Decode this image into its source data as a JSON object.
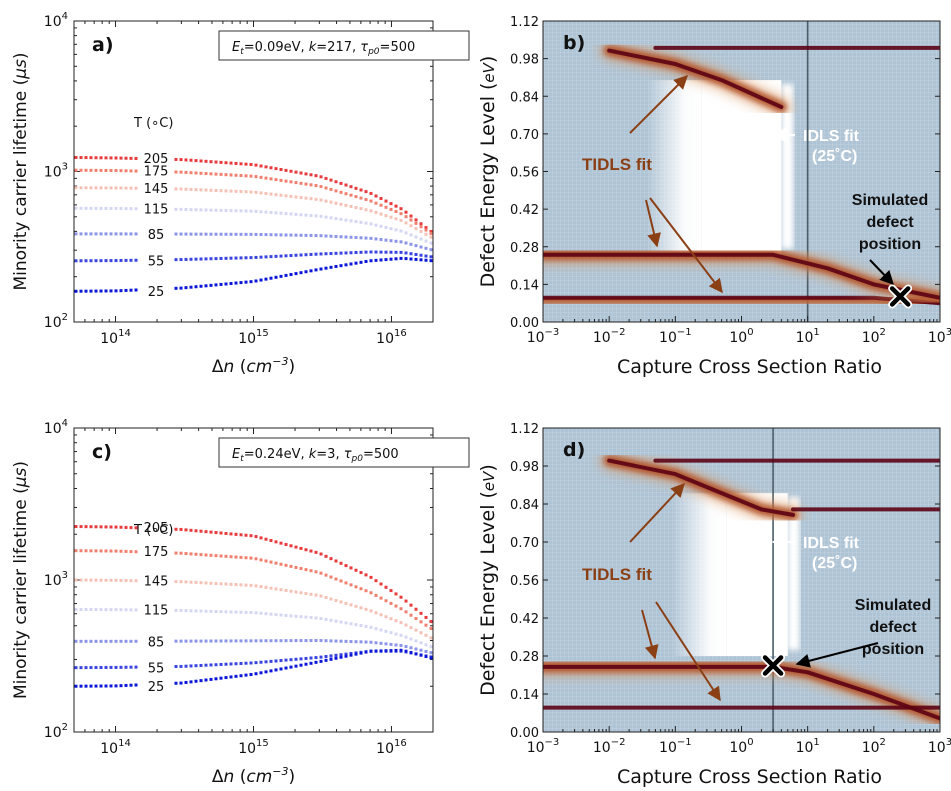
{
  "chart_data": [
    {
      "panel": "a)",
      "type": "scatter",
      "info": [
        "E",
        "t",
        "=0.09eV, ",
        "k",
        "=217, ",
        "τ",
        "p0",
        "=500"
      ],
      "xlabel_parts": [
        "Δ",
        "n",
        " (",
        "cm",
        "−3",
        ")"
      ],
      "ylabel_parts": [
        "Minority carrier lifetime (",
        "μs",
        ")"
      ],
      "xscale": "log",
      "yscale": "log",
      "xlim": [
        50000000000000.0,
        2e+16
      ],
      "ylim": [
        100,
        10000
      ],
      "xticks": [
        {
          "v": 100000000000000.0,
          "b": "10",
          "e": "14"
        },
        {
          "v": 1000000000000000.0,
          "b": "10",
          "e": "15"
        },
        {
          "v": 1e+16,
          "b": "10",
          "e": "16"
        }
      ],
      "yticks": [
        {
          "v": 100,
          "b": "10",
          "e": "2"
        },
        {
          "v": 1000,
          "b": "10",
          "e": "3"
        },
        {
          "v": 10000,
          "b": "10",
          "e": "4"
        }
      ],
      "legend_title": "T (∘C)",
      "series": [
        {
          "name": "205",
          "color": "#e8393b",
          "x": [
            50000000000000.0,
            100000000000000.0,
            300000000000000.0,
            1000000000000000.0,
            3000000000000000.0,
            7000000000000000.0,
            1.2e+16,
            2e+16
          ],
          "y": [
            1240,
            1230,
            1200,
            1110,
            930,
            720,
            560,
            390
          ]
        },
        {
          "name": "175",
          "color": "#f07f6e",
          "x": [
            50000000000000.0,
            100000000000000.0,
            300000000000000.0,
            1000000000000000.0,
            3000000000000000.0,
            7000000000000000.0,
            1.2e+16,
            2e+16
          ],
          "y": [
            1020,
            1015,
            990,
            930,
            800,
            640,
            520,
            380
          ]
        },
        {
          "name": "145",
          "color": "#f5c1b4",
          "x": [
            50000000000000.0,
            100000000000000.0,
            300000000000000.0,
            1000000000000000.0,
            3000000000000000.0,
            7000000000000000.0,
            1.2e+16,
            2e+16
          ],
          "y": [
            780,
            778,
            765,
            730,
            650,
            550,
            470,
            360
          ]
        },
        {
          "name": "115",
          "color": "#d3d7f2",
          "x": [
            50000000000000.0,
            100000000000000.0,
            300000000000000.0,
            1000000000000000.0,
            3000000000000000.0,
            7000000000000000.0,
            1.2e+16,
            2e+16
          ],
          "y": [
            570,
            568,
            560,
            545,
            505,
            450,
            400,
            330
          ]
        },
        {
          "name": "85",
          "color": "#8b94e6",
          "x": [
            50000000000000.0,
            100000000000000.0,
            300000000000000.0,
            1000000000000000.0,
            3000000000000000.0,
            7000000000000000.0,
            1.2e+16,
            2e+16
          ],
          "y": [
            385,
            385,
            384,
            382,
            375,
            360,
            340,
            300
          ]
        },
        {
          "name": "55",
          "color": "#3844df",
          "x": [
            50000000000000.0,
            100000000000000.0,
            300000000000000.0,
            1000000000000000.0,
            3000000000000000.0,
            7000000000000000.0,
            1.2e+16,
            2e+16
          ],
          "y": [
            255,
            256,
            260,
            268,
            283,
            292,
            290,
            270
          ]
        },
        {
          "name": "25",
          "color": "#0a16d8",
          "x": [
            50000000000000.0,
            100000000000000.0,
            300000000000000.0,
            1000000000000000.0,
            3000000000000000.0,
            7000000000000000.0,
            1.2e+16,
            2e+16
          ],
          "y": [
            160,
            161,
            168,
            186,
            224,
            255,
            265,
            255
          ]
        }
      ]
    },
    {
      "panel": "b)",
      "type": "heatmap",
      "xlabel": "Capture Cross Section Ratio",
      "ylabel_parts": [
        "Defect Energy Level (",
        "eV",
        ")"
      ],
      "xscale": "log",
      "xlim": [
        0.001,
        1000
      ],
      "ylim": [
        0,
        1.12
      ],
      "xticks": [
        {
          "v": 0.001,
          "b": "10",
          "e": "−3"
        },
        {
          "v": 0.01,
          "b": "10",
          "e": "−2"
        },
        {
          "v": 0.1,
          "b": "10",
          "e": "−1"
        },
        {
          "v": 1,
          "b": "10",
          "e": "0"
        },
        {
          "v": 10,
          "b": "10",
          "e": "1"
        },
        {
          "v": 100,
          "b": "10",
          "e": "2"
        },
        {
          "v": 1000,
          "b": "10",
          "e": "3"
        }
      ],
      "yticks": [
        "0.00",
        "0.14",
        "0.28",
        "0.42",
        "0.56",
        "0.70",
        "0.84",
        "0.98",
        "1.12"
      ],
      "annotations": {
        "tidls": "TIDLS fit",
        "idls_1": "IDLS fit",
        "idls_2": "(25˚C)",
        "sim_1": "Simulated",
        "sim_2": "defect",
        "sim_3": "position"
      },
      "idls_white_region": {
        "x_left": 0.25,
        "x_right": 4,
        "y_bottom": 0.25,
        "y_top": 0.9
      },
      "bands": [
        {
          "points": [
            [
              0.001,
              0.09
            ],
            [
              10,
              0.09
            ],
            [
              100,
              0.09
            ],
            [
              1000,
              0.07
            ]
          ]
        },
        {
          "points": [
            [
              0.001,
              0.25
            ],
            [
              3,
              0.25
            ],
            [
              20,
              0.2
            ],
            [
              100,
              0.14
            ],
            [
              1000,
              0.09
            ]
          ]
        },
        {
          "points": [
            [
              0.01,
              1.01
            ],
            [
              0.1,
              0.96
            ],
            [
              0.5,
              0.9
            ],
            [
              4,
              0.8
            ]
          ]
        },
        {
          "points": [
            [
              0.05,
              1.02
            ],
            [
              1000,
              1.02
            ]
          ]
        }
      ],
      "marker": {
        "x": 250,
        "y": 0.095
      }
    },
    {
      "panel": "c)",
      "type": "scatter",
      "info": [
        "E",
        "t",
        "=0.24eV, ",
        "k",
        "=3, ",
        "τ",
        "p0",
        "=500"
      ],
      "xlabel_parts": [
        "Δ",
        "n",
        " (",
        "cm",
        "−3",
        ")"
      ],
      "ylabel_parts": [
        "Minority carrier lifetime (",
        "μs",
        ")"
      ],
      "xscale": "log",
      "yscale": "log",
      "xlim": [
        50000000000000.0,
        2e+16
      ],
      "ylim": [
        100,
        10000
      ],
      "xticks": [
        {
          "v": 100000000000000.0,
          "b": "10",
          "e": "14"
        },
        {
          "v": 1000000000000000.0,
          "b": "10",
          "e": "15"
        },
        {
          "v": 1e+16,
          "b": "10",
          "e": "16"
        }
      ],
      "yticks": [
        {
          "v": 100,
          "b": "10",
          "e": "2"
        },
        {
          "v": 1000,
          "b": "10",
          "e": "3"
        },
        {
          "v": 10000,
          "b": "10",
          "e": "4"
        }
      ],
      "legend_title": "T (∘C)",
      "series": [
        {
          "name": "205",
          "color": "#e8393b",
          "x": [
            50000000000000.0,
            100000000000000.0,
            300000000000000.0,
            1000000000000000.0,
            3000000000000000.0,
            7000000000000000.0,
            1.2e+16,
            2e+16
          ],
          "y": [
            2250,
            2230,
            2150,
            1950,
            1500,
            1050,
            760,
            520
          ]
        },
        {
          "name": "175",
          "color": "#f07f6e",
          "x": [
            50000000000000.0,
            100000000000000.0,
            300000000000000.0,
            1000000000000000.0,
            3000000000000000.0,
            7000000000000000.0,
            1.2e+16,
            2e+16
          ],
          "y": [
            1560,
            1550,
            1500,
            1390,
            1120,
            830,
            640,
            470
          ]
        },
        {
          "name": "145",
          "color": "#f5c1b4",
          "x": [
            50000000000000.0,
            100000000000000.0,
            300000000000000.0,
            1000000000000000.0,
            3000000000000000.0,
            7000000000000000.0,
            1.2e+16,
            2e+16
          ],
          "y": [
            1000,
            995,
            975,
            920,
            790,
            630,
            520,
            410
          ]
        },
        {
          "name": "115",
          "color": "#d3d7f2",
          "x": [
            50000000000000.0,
            100000000000000.0,
            300000000000000.0,
            1000000000000000.0,
            3000000000000000.0,
            7000000000000000.0,
            1.2e+16,
            2e+16
          ],
          "y": [
            640,
            638,
            630,
            610,
            560,
            490,
            430,
            360
          ]
        },
        {
          "name": "85",
          "color": "#8b94e6",
          "x": [
            50000000000000.0,
            100000000000000.0,
            300000000000000.0,
            1000000000000000.0,
            3000000000000000.0,
            7000000000000000.0,
            1.2e+16,
            2e+16
          ],
          "y": [
            395,
            395,
            396,
            398,
            400,
            390,
            370,
            330
          ]
        },
        {
          "name": "55",
          "color": "#3844df",
          "x": [
            50000000000000.0,
            100000000000000.0,
            300000000000000.0,
            1000000000000000.0,
            3000000000000000.0,
            7000000000000000.0,
            1.2e+16,
            2e+16
          ],
          "y": [
            265,
            266,
            270,
            285,
            310,
            340,
            340,
            310
          ]
        },
        {
          "name": "25",
          "color": "#0a16d8",
          "x": [
            50000000000000.0,
            100000000000000.0,
            300000000000000.0,
            1000000000000000.0,
            3000000000000000.0,
            7000000000000000.0,
            1.2e+16,
            2e+16
          ],
          "y": [
            200,
            201,
            210,
            240,
            290,
            340,
            345,
            305
          ]
        }
      ]
    },
    {
      "panel": "d)",
      "type": "heatmap",
      "xlabel": "Capture Cross Section Ratio",
      "ylabel_parts": [
        "Defect Energy Level (",
        "eV",
        ")"
      ],
      "xscale": "log",
      "xlim": [
        0.001,
        1000
      ],
      "ylim": [
        0,
        1.12
      ],
      "xticks": [
        {
          "v": 0.001,
          "b": "10",
          "e": "−3"
        },
        {
          "v": 0.01,
          "b": "10",
          "e": "−2"
        },
        {
          "v": 0.1,
          "b": "10",
          "e": "−1"
        },
        {
          "v": 1,
          "b": "10",
          "e": "0"
        },
        {
          "v": 10,
          "b": "10",
          "e": "1"
        },
        {
          "v": 100,
          "b": "10",
          "e": "2"
        },
        {
          "v": 1000,
          "b": "10",
          "e": "3"
        }
      ],
      "yticks": [
        "0.00",
        "0.14",
        "0.28",
        "0.42",
        "0.56",
        "0.70",
        "0.84",
        "0.98",
        "1.12"
      ],
      "annotations": {
        "tidls": "TIDLS fit",
        "idls_1": "IDLS fit",
        "idls_2": "(25˚C)",
        "sim_1": "Simulated",
        "sim_2": "defect",
        "sim_3": "position"
      },
      "idls_white_region": {
        "x_left": 0.6,
        "x_right": 5,
        "y_bottom": 0.28,
        "y_top": 0.88
      },
      "bands": [
        {
          "points": [
            [
              0.001,
              0.24
            ],
            [
              3,
              0.24
            ],
            [
              10,
              0.22
            ],
            [
              100,
              0.14
            ],
            [
              1000,
              0.05
            ]
          ]
        },
        {
          "points": [
            [
              0.001,
              0.09
            ],
            [
              1000,
              0.09
            ]
          ]
        },
        {
          "points": [
            [
              0.01,
              1.0
            ],
            [
              0.1,
              0.95
            ],
            [
              0.5,
              0.88
            ],
            [
              2,
              0.82
            ],
            [
              6,
              0.8
            ]
          ]
        },
        {
          "points": [
            [
              0.05,
              1.0
            ],
            [
              1000,
              1.0
            ]
          ]
        },
        {
          "points": [
            [
              6,
              0.82
            ],
            [
              1000,
              0.82
            ]
          ]
        }
      ],
      "marker": {
        "x": 3,
        "y": 0.245
      }
    }
  ]
}
